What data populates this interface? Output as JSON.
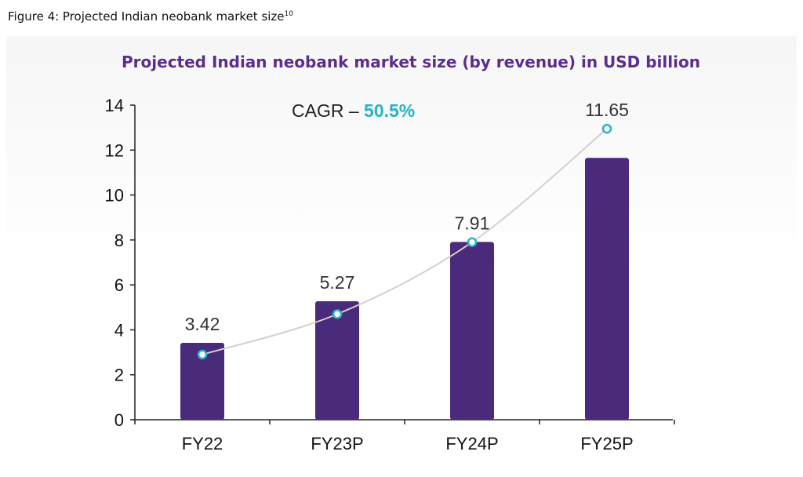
{
  "figure": {
    "caption": "Figure 4: Projected Indian neobank market size",
    "footnote_ref": "10"
  },
  "chart_data": {
    "type": "bar",
    "title": "Projected Indian neobank market size (by revenue) in USD billion",
    "annotation": {
      "prefix": "CAGR – ",
      "value": "50.5%"
    },
    "categories": [
      "FY22",
      "FY23P",
      "FY24P",
      "FY25P"
    ],
    "values": [
      3.42,
      5.27,
      7.91,
      11.65
    ],
    "data_labels": [
      "3.42",
      "5.27",
      "7.91",
      "11.65"
    ],
    "trend_points": [
      2.9,
      4.7,
      7.9,
      12.95
    ],
    "ylim": [
      0,
      14
    ],
    "yticks": [
      0,
      2,
      4,
      6,
      8,
      10,
      12,
      14
    ],
    "xlabel": "",
    "ylabel": "",
    "grid": false,
    "colors": {
      "bar": "#4a2a7a",
      "title": "#5b2d8c",
      "annotation_value": "#25b4c6",
      "trend_line": "#d8cfc8",
      "trend_marker": "#25b4c6"
    }
  }
}
